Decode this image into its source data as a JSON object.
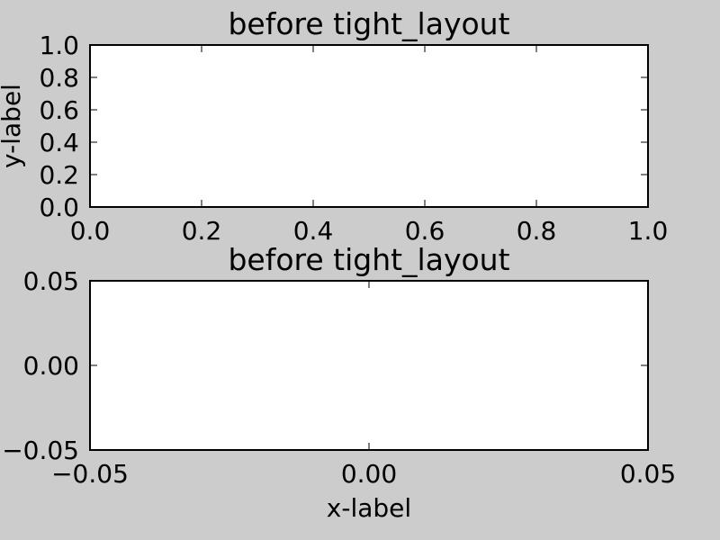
{
  "background_color": "#cccccc",
  "axes_face_color": "#ffffff",
  "chart_data": [
    {
      "type": "line",
      "title": "before tight_layout",
      "xlabel": "",
      "ylabel": "y-label",
      "xlim": [
        0.0,
        1.0
      ],
      "ylim": [
        0.0,
        1.0
      ],
      "xticks": [
        "0.0",
        "0.2",
        "0.4",
        "0.6",
        "0.8",
        "1.0"
      ],
      "yticks": [
        "0.0",
        "0.2",
        "0.4",
        "0.6",
        "0.8",
        "1.0"
      ],
      "grid": false,
      "series": []
    },
    {
      "type": "line",
      "title": "before tight_layout",
      "xlabel": "x-label",
      "ylabel": "",
      "xlim": [
        -0.05,
        0.05
      ],
      "ylim": [
        -0.05,
        0.05
      ],
      "xticks": [
        "−0.05",
        "0.00",
        "0.05"
      ],
      "yticks": [
        "−0.05",
        "0.00",
        "0.05"
      ],
      "grid": false,
      "series": []
    }
  ]
}
